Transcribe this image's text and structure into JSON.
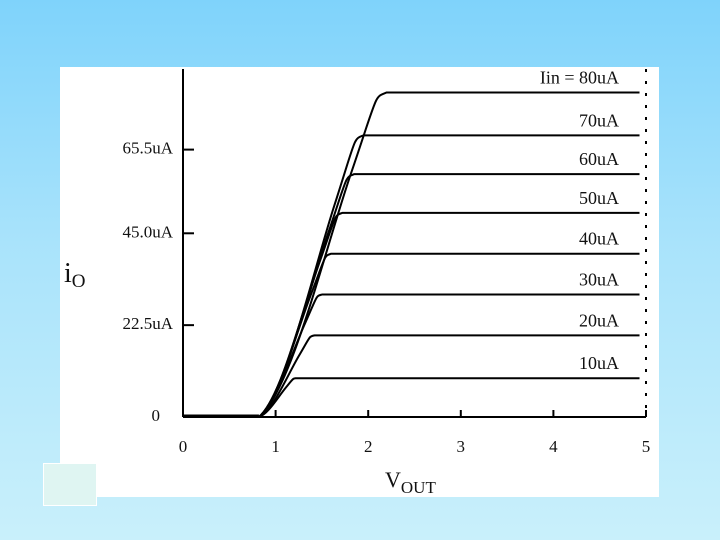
{
  "chart_data": {
    "type": "line",
    "xlabel": "V",
    "xlabel_sub": "OUT",
    "ylabel": "i",
    "ylabel_sub": "O",
    "xlim": [
      0,
      5
    ],
    "ylim": [
      0,
      85
    ],
    "x_ticks": [
      "0",
      "1",
      "2",
      "3",
      "4",
      "5"
    ],
    "y_ticks": [
      {
        "label": "0",
        "value": 0
      },
      {
        "label": "22.5uA",
        "value": 22.5
      },
      {
        "label": "45.0uA",
        "value": 45.0
      },
      {
        "label": "65.5uA",
        "value": 65.5
      }
    ],
    "grid": false,
    "series": [
      {
        "name": "10uA",
        "label_prefix": "",
        "knee_x": 1.22,
        "values": 9.5
      },
      {
        "name": "20uA",
        "label_prefix": "",
        "knee_x": 1.42,
        "values": 20.0
      },
      {
        "name": "30uA",
        "label_prefix": "",
        "knee_x": 1.5,
        "values": 30.0
      },
      {
        "name": "40uA",
        "label_prefix": "",
        "knee_x": 1.6,
        "values": 40.0
      },
      {
        "name": "50uA",
        "label_prefix": "",
        "knee_x": 1.72,
        "values": 50.0
      },
      {
        "name": "60uA",
        "label_prefix": "",
        "knee_x": 1.85,
        "values": 59.5
      },
      {
        "name": "70uA",
        "label_prefix": "",
        "knee_x": 1.95,
        "values": 69.0
      },
      {
        "name": "80uA",
        "label_prefix": "Iin = ",
        "knee_x": 2.2,
        "values": 79.5
      }
    ],
    "onset_x": 0.82
  }
}
